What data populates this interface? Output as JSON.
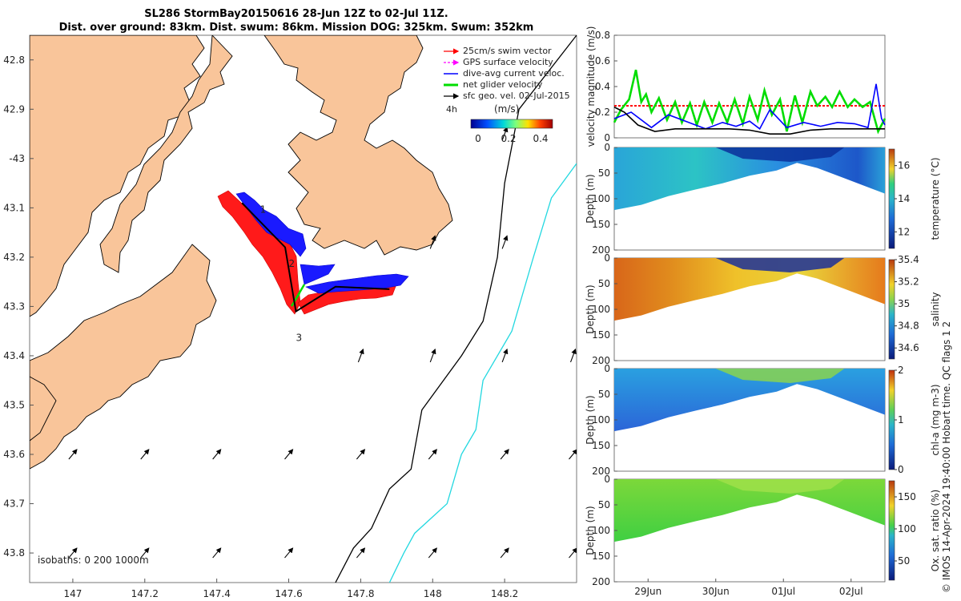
{
  "title": {
    "line1": "SL286 StormBay20150616 28-Jun 12Z to 02-Jul 11Z.",
    "line2": "Dist. over ground: 83km. Dist. swum: 86km. Mission DOG: 325km. Swum: 352km"
  },
  "colors": {
    "land": "#f9c59a",
    "glider_track": "#000000",
    "swim_vector": "#ff0000",
    "gps_velocity": "#ff00ff",
    "dive_avg": "#0000ff",
    "net_velocity": "#00dd00",
    "geo_vel": "#000000",
    "isobath_200": "#000000",
    "isobath_1000": "#22d8e0"
  },
  "chart_data": [
    {
      "type": "scatter",
      "name": "map",
      "xlabel": "",
      "ylabel": "",
      "xlim": [
        146.88,
        148.4
      ],
      "ylim": [
        -43.86,
        -42.75
      ],
      "x_ticks": [
        147,
        147.2,
        147.4,
        147.6,
        147.8,
        148,
        148.2
      ],
      "x_tick_labels": [
        "147",
        "147.2",
        "147.4",
        "147.6",
        "147.8",
        "148",
        "148.2"
      ],
      "y_ticks": [
        -42.8,
        -42.9,
        -43.0,
        -43.1,
        -43.2,
        -43.3,
        -43.4,
        -43.5,
        -43.6,
        -43.7,
        -43.8
      ],
      "y_tick_labels": [
        "42.8",
        "42.9",
        "-43",
        "43.1",
        "43.2",
        "43.3",
        "43.4",
        "43.5",
        "43.6",
        "43.7",
        "43.8"
      ],
      "legend": [
        {
          "label": "25cm/s swim vector",
          "color": "#ff0000",
          "style": "arrow"
        },
        {
          "label": "GPS surface velocity",
          "color": "#ff00ff",
          "style": "dash"
        },
        {
          "label": "dive-avg current veloc.",
          "color": "#0000ff",
          "style": "line"
        },
        {
          "label": "net glider velocity",
          "color": "#00dd00",
          "style": "thick"
        },
        {
          "label": "sfc geo. vel. 02-Jul-2015",
          "color": "#000000",
          "style": "arrow"
        }
      ],
      "legend_time_label": "4h",
      "colorbar": {
        "label": "(m/s)",
        "ticks": [
          0,
          0.2,
          0.4
        ],
        "tick_labels": [
          "0",
          "0.2",
          "0.4"
        ],
        "range": [
          0,
          0.5
        ]
      },
      "waypoints": [
        {
          "label": "1",
          "lon": 147.52,
          "lat": -43.11
        },
        {
          "label": "2",
          "lon": 147.6,
          "lat": -43.22
        },
        {
          "label": "3",
          "lon": 147.62,
          "lat": -43.37
        }
      ],
      "glider_track": {
        "lon": [
          147.47,
          147.59,
          147.62,
          147.73,
          147.88
        ],
        "lat": [
          -43.09,
          -43.18,
          -43.31,
          -43.26,
          -43.265
        ]
      },
      "isobath_200": {
        "lon": [
          148.4,
          148.24,
          148.2,
          148.18,
          148.14,
          148.08,
          148.03,
          147.97,
          147.94,
          147.88,
          147.83,
          147.78,
          147.73
        ],
        "lat": [
          -42.75,
          -42.9,
          -43.05,
          -43.2,
          -43.33,
          -43.4,
          -43.45,
          -43.51,
          -43.63,
          -43.67,
          -43.75,
          -43.79,
          -43.86
        ]
      },
      "isobath_1000": {
        "lon": [
          148.4,
          148.33,
          148.28,
          148.22,
          148.14,
          148.12,
          148.08,
          148.04,
          147.95,
          147.92,
          147.88
        ],
        "lat": [
          -43.01,
          -43.08,
          -43.2,
          -43.35,
          -43.45,
          -43.55,
          -43.6,
          -43.7,
          -43.76,
          -43.8,
          -43.86
        ]
      },
      "isobath_label": "isobaths: 0   200  1000m"
    },
    {
      "type": "line",
      "name": "velocity",
      "ylabel": "velocity magnitude (m/s)",
      "ylim": [
        0,
        0.8
      ],
      "y_ticks": [
        0,
        0.2,
        0.4,
        0.6,
        0.8
      ],
      "y_tick_labels": [
        "0",
        "0.2",
        "0.4",
        "0.6",
        "0.8"
      ],
      "xlim": [
        0,
        4
      ],
      "series": [
        {
          "name": "swim target",
          "color": "#ff0000",
          "style": "dash",
          "x": [
            0,
            4
          ],
          "values": [
            0.25,
            0.25
          ]
        },
        {
          "name": "net glider velocity",
          "color": "#00dd00",
          "x": [
            0,
            0.1,
            0.22,
            0.32,
            0.4,
            0.47,
            0.55,
            0.66,
            0.78,
            0.9,
            1.0,
            1.12,
            1.22,
            1.33,
            1.45,
            1.55,
            1.67,
            1.78,
            1.9,
            2.0,
            2.12,
            2.22,
            2.33,
            2.45,
            2.55,
            2.67,
            2.78,
            2.9,
            3.0,
            3.12,
            3.22,
            3.33,
            3.45,
            3.55,
            3.67,
            3.78,
            3.9,
            4.0
          ],
          "values": [
            0.12,
            0.22,
            0.3,
            0.53,
            0.28,
            0.34,
            0.2,
            0.31,
            0.14,
            0.28,
            0.12,
            0.27,
            0.1,
            0.28,
            0.12,
            0.27,
            0.12,
            0.3,
            0.11,
            0.32,
            0.14,
            0.37,
            0.18,
            0.3,
            0.05,
            0.33,
            0.12,
            0.36,
            0.25,
            0.32,
            0.24,
            0.36,
            0.24,
            0.3,
            0.24,
            0.28,
            0.05,
            0.15
          ]
        },
        {
          "name": "dive-avg current",
          "color": "#0000ff",
          "x": [
            0,
            0.25,
            0.55,
            0.8,
            1.1,
            1.35,
            1.6,
            1.8,
            2.0,
            2.15,
            2.3,
            2.55,
            2.8,
            3.05,
            3.3,
            3.55,
            3.75,
            3.87,
            3.95,
            4.0
          ],
          "values": [
            0.15,
            0.2,
            0.08,
            0.18,
            0.12,
            0.07,
            0.12,
            0.09,
            0.13,
            0.07,
            0.22,
            0.08,
            0.12,
            0.09,
            0.12,
            0.11,
            0.08,
            0.42,
            0.15,
            0.1
          ]
        },
        {
          "name": "sfc geo. vel.",
          "color": "#000000",
          "x": [
            0,
            0.15,
            0.35,
            0.6,
            0.9,
            1.3,
            1.7,
            2.0,
            2.3,
            2.6,
            2.9,
            3.2,
            3.5,
            3.8,
            4.0
          ],
          "values": [
            0.24,
            0.2,
            0.1,
            0.05,
            0.07,
            0.07,
            0.07,
            0.06,
            0.03,
            0.03,
            0.06,
            0.07,
            0.07,
            0.07,
            0.07
          ]
        }
      ]
    },
    {
      "type": "heatmap",
      "name": "temperature",
      "ylabel": "Depth (m)",
      "colorbar_label": "temperature (°C)",
      "ylim": [
        0,
        200
      ],
      "y_ticks": [
        0,
        50,
        100,
        150,
        200
      ],
      "y_tick_labels": [
        "0",
        "50",
        "100",
        "150",
        "200"
      ],
      "colorbar_ticks": [
        12,
        14,
        16
      ],
      "colorbar_tick_labels": [
        "12",
        "14",
        "16"
      ],
      "colorbar_range": [
        11,
        17
      ],
      "max_depth": {
        "x": [
          0,
          0.4,
          0.8,
          1.2,
          1.6,
          2.0,
          2.4,
          2.7,
          3.0,
          3.4,
          3.8,
          4.0
        ],
        "values": [
          122,
          112,
          95,
          82,
          70,
          55,
          45,
          30,
          40,
          60,
          80,
          90
        ]
      }
    },
    {
      "type": "heatmap",
      "name": "salinity",
      "ylabel": "Depth (m)",
      "colorbar_label": "salinity",
      "ylim": [
        0,
        200
      ],
      "y_ticks": [
        0,
        50,
        100,
        150,
        200
      ],
      "y_tick_labels": [
        "0",
        "50",
        "100",
        "150",
        "200"
      ],
      "colorbar_ticks": [
        34.6,
        34.8,
        35,
        35.2,
        35.4
      ],
      "colorbar_tick_labels": [
        "34.6",
        "34.8",
        "35",
        "35.2",
        "35.4"
      ],
      "colorbar_range": [
        34.5,
        35.4
      ],
      "max_depth": {
        "x": [
          0,
          0.4,
          0.8,
          1.2,
          1.6,
          2.0,
          2.4,
          2.7,
          3.0,
          3.4,
          3.8,
          4.0
        ],
        "values": [
          122,
          112,
          95,
          82,
          70,
          55,
          45,
          30,
          40,
          60,
          80,
          90
        ]
      }
    },
    {
      "type": "heatmap",
      "name": "chl-a",
      "ylabel": "Depth (m)",
      "colorbar_label": "chl-a (mg m-3)",
      "ylim": [
        0,
        200
      ],
      "y_ticks": [
        0,
        50,
        100,
        150,
        200
      ],
      "y_tick_labels": [
        "0",
        "50",
        "100",
        "150",
        "200"
      ],
      "colorbar_ticks": [
        0,
        1,
        2
      ],
      "colorbar_tick_labels": [
        "0",
        "1",
        "2"
      ],
      "colorbar_range": [
        0,
        2
      ],
      "max_depth": {
        "x": [
          0,
          0.4,
          0.8,
          1.2,
          1.6,
          2.0,
          2.4,
          2.7,
          3.0,
          3.4,
          3.8,
          4.0
        ],
        "values": [
          122,
          112,
          95,
          82,
          70,
          55,
          45,
          30,
          40,
          60,
          80,
          90
        ]
      }
    },
    {
      "type": "heatmap",
      "name": "oxygen",
      "ylabel": "Depth (m)",
      "colorbar_label": "Ox. sat. ratio (%)",
      "ylim": [
        0,
        200
      ],
      "y_ticks": [
        0,
        50,
        100,
        150,
        200
      ],
      "y_tick_labels": [
        "0",
        "50",
        "100",
        "150",
        "200"
      ],
      "colorbar_ticks": [
        50,
        100,
        150
      ],
      "colorbar_tick_labels": [
        "50",
        "100",
        "150"
      ],
      "colorbar_range": [
        20,
        175
      ],
      "max_depth": {
        "x": [
          0,
          0.4,
          0.8,
          1.2,
          1.6,
          2.0,
          2.4,
          2.7,
          3.0,
          3.4,
          3.8,
          4.0
        ],
        "values": [
          122,
          112,
          95,
          82,
          70,
          55,
          45,
          30,
          40,
          60,
          80,
          90
        ]
      }
    }
  ],
  "time_axis": {
    "ticks": [
      0.5,
      1.5,
      2.5,
      3.5
    ],
    "labels": [
      "29Jun",
      "30Jun",
      "01Jul",
      "02Jul"
    ]
  },
  "side_note": "© IMOS 14-Apr-2024 19:40:00 Hobart time. QC flags 1  2"
}
